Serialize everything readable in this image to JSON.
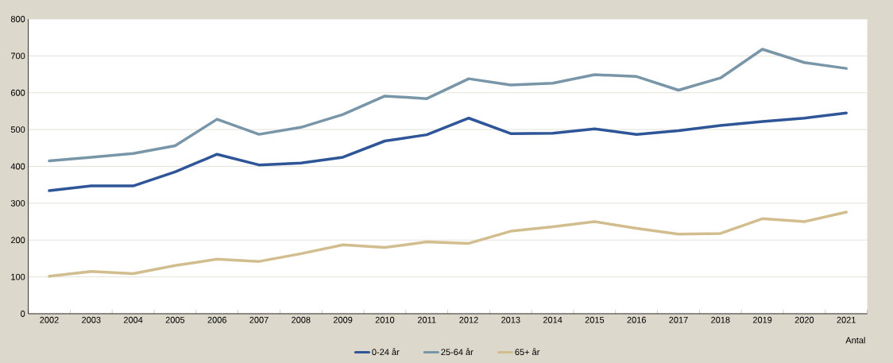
{
  "chart_data": {
    "type": "line",
    "categories": [
      "2002",
      "2003",
      "2004",
      "2005",
      "2006",
      "2007",
      "2008",
      "2009",
      "2010",
      "2011",
      "2012",
      "2013",
      "2014",
      "2015",
      "2016",
      "2017",
      "2018",
      "2019",
      "2020",
      "2021"
    ],
    "series": [
      {
        "name": "0-24 år",
        "color": "#2e5597",
        "values": [
          334,
          347,
          347,
          385,
          433,
          404,
          409,
          425,
          469,
          486,
          531,
          489,
          490,
          502,
          487,
          497,
          511,
          522,
          531,
          545
        ]
      },
      {
        "name": "25-64 år",
        "color": "#7896a8",
        "values": [
          415,
          425,
          435,
          456,
          528,
          487,
          506,
          541,
          591,
          584,
          638,
          621,
          626,
          649,
          644,
          607,
          640,
          718,
          682,
          666
        ]
      },
      {
        "name": "65+ år",
        "color": "#d2bd8f",
        "values": [
          102,
          115,
          109,
          131,
          148,
          142,
          163,
          187,
          180,
          195,
          191,
          224,
          236,
          250,
          232,
          216,
          218,
          258,
          250,
          276
        ]
      }
    ],
    "ylim": [
      0,
      800
    ],
    "yticks": [
      0,
      100,
      200,
      300,
      400,
      500,
      600,
      700,
      800
    ],
    "grid": "y",
    "legend": "bottom",
    "marker": "none",
    "line_style": "solid",
    "annotations": [
      "Antal"
    ]
  }
}
